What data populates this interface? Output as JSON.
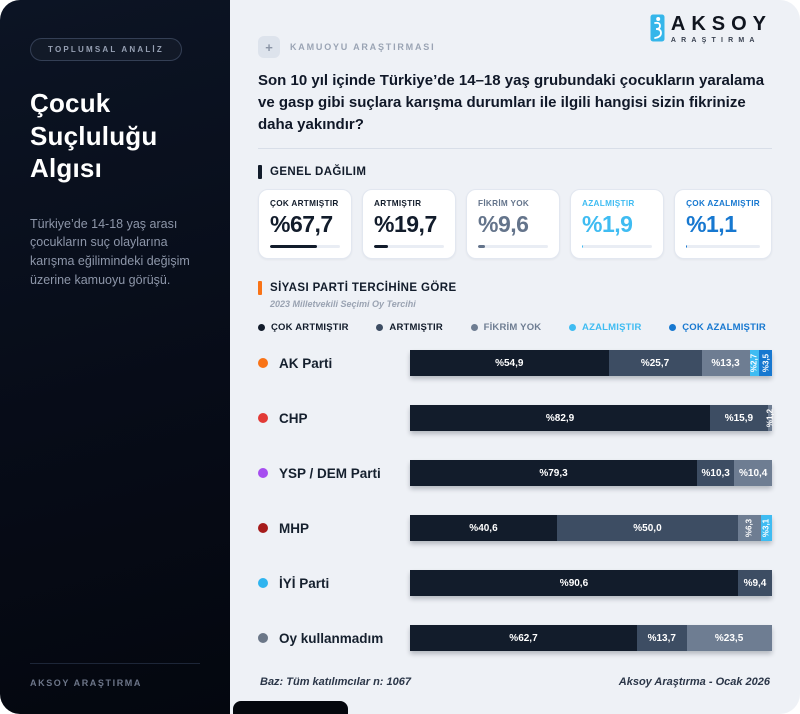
{
  "sidebar": {
    "badge": "TOPLUMSAL ANALİZ",
    "title": "Çocuk Suçluluğu Algısı",
    "description": "Türkiye’de 14-18 yaş arası çocukların suç olaylarına karışma eğilimindeki değişim üzerine kamuoyu görüşü.",
    "footer": "AKSOY ARAŞTIRMA"
  },
  "header": {
    "badge_icon": "+",
    "badge_label": "KAMUOYU ARAŞTIRMASI",
    "logo": {
      "name": "AKSOY",
      "subtitle": "ARAŞTIRMA"
    }
  },
  "question": "Son 10 yıl içinde Türkiye’de 14–18 yaş grubundaki çocukların yaralama ve gasp gibi suçlara karışma durumları ile ilgili hangisi sizin fikrinize daha yakındır?",
  "general": {
    "section_title": "GENEL DAĞILIM",
    "cards": [
      {
        "label": "ÇOK ARTMIŞTIR",
        "value": "%67,7",
        "pct": 67.7,
        "color": "#121c2b"
      },
      {
        "label": "ARTMIŞTIR",
        "value": "%19,7",
        "pct": 19.7,
        "color": "#121c2b"
      },
      {
        "label": "FİKRİM YOK",
        "value": "%9,6",
        "pct": 9.6,
        "color": "#64748b"
      },
      {
        "label": "AZALMIŞTIR",
        "value": "%1,9",
        "pct": 1.9,
        "color": "#3fbcf2"
      },
      {
        "label": "ÇOK AZALMIŞTIR",
        "value": "%1,1",
        "pct": 1.1,
        "color": "#1778d0"
      }
    ]
  },
  "party_section": {
    "section_title": "SİYASI PARTİ TERCİHİNE GÖRE",
    "subtitle": "2023 Milletvekili Seçimi Oy Tercihi"
  },
  "chart_data": {
    "type": "bar",
    "stacked": true,
    "orientation": "horizontal",
    "xlim": [
      0,
      100
    ],
    "unit": "percent",
    "legend": [
      {
        "label": "ÇOK ARTMIŞTIR",
        "color": "#121c2b",
        "text_color": "#121c2b"
      },
      {
        "label": "ARTMIŞTIR",
        "color": "#3d4d63",
        "text_color": "#121c2b"
      },
      {
        "label": "FİKRİM YOK",
        "color": "#6e7d92",
        "text_color": "#6e7d92"
      },
      {
        "label": "AZALMIŞTIR",
        "color": "#3fbcf2",
        "text_color": "#3fbcf2"
      },
      {
        "label": "ÇOK AZALMIŞTIR",
        "color": "#1778d0",
        "text_color": "#1778d0"
      }
    ],
    "rows": [
      {
        "party": "AK Parti",
        "dot_color": "#f97316",
        "values": [
          54.9,
          25.7,
          13.3,
          2.7,
          3.5
        ],
        "labels": [
          "%54,9",
          "%25,7",
          "%13,3",
          "%2,7",
          "%3,5"
        ]
      },
      {
        "party": "CHP",
        "dot_color": "#e23a36",
        "values": [
          82.9,
          15.9,
          1.2,
          0,
          0
        ],
        "labels": [
          "%82,9",
          "%15,9",
          "%1,2",
          "",
          ""
        ]
      },
      {
        "party": "YSP / DEM Parti",
        "dot_color": "#a64df0",
        "values": [
          79.3,
          10.3,
          10.4,
          0,
          0
        ],
        "labels": [
          "%79,3",
          "%10,3",
          "%10,4",
          "",
          ""
        ]
      },
      {
        "party": "MHP",
        "dot_color": "#a61b1b",
        "values": [
          40.6,
          50.0,
          6.3,
          3.1,
          0
        ],
        "labels": [
          "%40,6",
          "%50,0",
          "%6,3",
          "%3,1",
          ""
        ]
      },
      {
        "party": "İYİ Parti",
        "dot_color": "#2fb4ef",
        "values": [
          90.6,
          9.4,
          0,
          0,
          0
        ],
        "labels": [
          "%90,6",
          "%9,4",
          "",
          "",
          ""
        ]
      },
      {
        "party": "Oy kullanmadım",
        "dot_color": "#6b7788",
        "values": [
          62.7,
          13.7,
          23.5,
          0,
          0
        ],
        "labels": [
          "%62,7",
          "%13,7",
          "%23,5",
          "",
          ""
        ]
      }
    ]
  },
  "footer": {
    "left": "Baz: Tüm katılımcılar n: 1067",
    "right": "Aksoy Araştırma - Ocak 2026"
  }
}
